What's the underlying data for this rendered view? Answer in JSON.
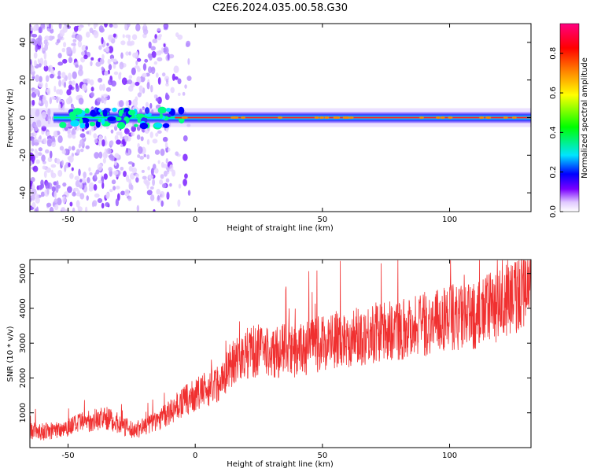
{
  "figure": {
    "title": "C2E6.2024.035.00.58.G30"
  },
  "chart_data": [
    {
      "type": "heatmap",
      "xlabel": "Height of straight line (km)",
      "ylabel": "Frequency (Hz)",
      "xlim": [
        -65,
        132
      ],
      "ylim": [
        -50,
        50
      ],
      "x_ticks": [
        -50,
        0,
        50,
        100
      ],
      "y_ticks": [
        -40,
        -20,
        0,
        20,
        40
      ],
      "colorbar": {
        "label": "Normalized spectral amplitude",
        "range": [
          0,
          0.95
        ],
        "ticks": [
          0.0,
          0.2,
          0.4,
          0.6,
          0.8
        ],
        "colormap": [
          "#ffffff",
          "#e0c8ff",
          "#7a00ff",
          "#0000ff",
          "#00e5ff",
          "#00ff00",
          "#ffff00",
          "#ff8000",
          "#ff0000",
          "#ff0080"
        ]
      },
      "ridge": {
        "frequency": 0,
        "peak_amplitude": 0.9,
        "noise_cutoff_km": -10
      },
      "grid": false
    },
    {
      "type": "line",
      "xlabel": "Height of straight line (km)",
      "ylabel": "SNR (10 * v/v)",
      "xlim": [
        -65,
        132
      ],
      "ylim": [
        0,
        5400
      ],
      "x_ticks": [
        -50,
        0,
        50,
        100
      ],
      "y_ticks": [
        1000,
        2000,
        3000,
        4000,
        5000
      ],
      "color": "#f03030",
      "series": [
        {
          "x": [
            -65,
            -60,
            -55,
            -50,
            -45,
            -40,
            -35,
            -30,
            -25,
            -20,
            -15,
            -10,
            -5,
            0,
            5,
            10,
            15,
            20,
            25,
            30,
            35,
            40,
            45,
            50,
            55,
            60,
            65,
            70,
            75,
            80,
            85,
            90,
            95,
            100,
            105,
            110,
            115,
            120,
            125,
            130,
            132
          ],
          "y": [
            500,
            450,
            500,
            600,
            700,
            800,
            850,
            700,
            500,
            600,
            800,
            1000,
            1300,
            1500,
            1700,
            1900,
            2500,
            2700,
            2800,
            2700,
            2800,
            2750,
            2900,
            3000,
            3100,
            3150,
            3200,
            3300,
            3350,
            3400,
            3500,
            3550,
            3600,
            3800,
            3700,
            3750,
            4000,
            4100,
            4300,
            4600,
            4600
          ]
        }
      ],
      "grid": false
    }
  ]
}
